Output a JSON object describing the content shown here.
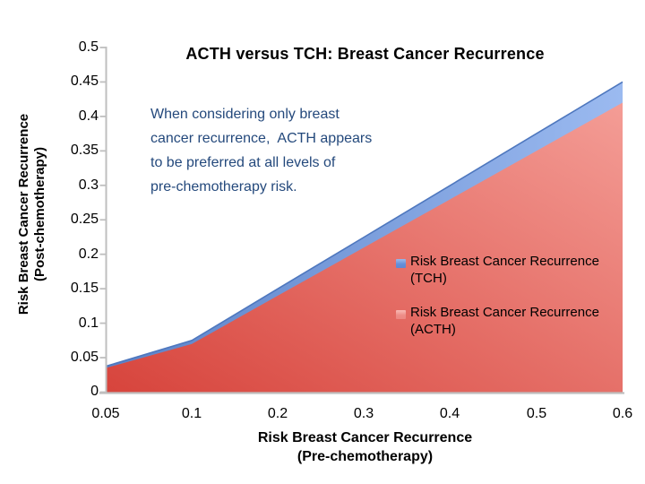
{
  "title": "ACTH versus TCH: Breast Cancer Recurrence",
  "annotation": {
    "lines": [
      "When considering only breast",
      "cancer recurrence,  ACTH appears",
      "to be preferred at all levels of",
      "pre-chemotherapy risk."
    ]
  },
  "y_axis": {
    "title_line1": "Risk Breast Cancer Recurrence",
    "title_line2": "(Post-chemotherapy)",
    "ticks": [
      "0.5",
      "0.45",
      "0.4",
      "0.35",
      "0.3",
      "0.25",
      "0.2",
      "0.15",
      "0.1",
      "0.05",
      "0"
    ]
  },
  "x_axis": {
    "title_line1": "Risk Breast Cancer Recurrence",
    "title_line2": "(Pre-chemotherapy)",
    "ticks": [
      "0.05",
      "0.1",
      "0.2",
      "0.3",
      "0.4",
      "0.5",
      "0.6"
    ]
  },
  "legend": {
    "items": [
      {
        "line1": "Risk Breast Cancer Recurrence",
        "line2": "(TCH)"
      },
      {
        "line1": "Risk Breast Cancer Recurrence",
        "line2": "(ACTH)"
      }
    ]
  },
  "chart_data": {
    "type": "area",
    "title": "ACTH versus TCH: Breast Cancer Recurrence",
    "categories": [
      0.05,
      0.1,
      0.2,
      0.3,
      0.4,
      0.5,
      0.6
    ],
    "x_axis_type": "category",
    "series": [
      {
        "name": "Risk Breast Cancer Recurrence (TCH)",
        "values": [
          0.0375,
          0.075,
          0.15,
          0.225,
          0.3,
          0.375,
          0.45
        ]
      },
      {
        "name": "Risk Breast Cancer Recurrence (ACTH)",
        "values": [
          0.035,
          0.07,
          0.14,
          0.21,
          0.28,
          0.35,
          0.42
        ]
      }
    ],
    "xlabel": "Risk Breast Cancer Recurrence (Pre-chemotherapy)",
    "ylabel": "Risk Breast Cancer Recurrence (Post-chemotherapy)",
    "ylim": [
      0,
      0.5
    ],
    "grid": false,
    "legend_position": "inside-right",
    "annotation": "When considering only breast cancer recurrence,  ACTH appears to be preferred at all levels of pre-chemotherapy risk."
  },
  "colors": {
    "tch_fill_left": "#5B82C8",
    "tch_fill_right": "#9BBAF0",
    "tch_edge": "#4E77BE",
    "acth_fill_dark": "#D7443C",
    "acth_fill_light": "#F49D96",
    "axis_line": "#BFBFBF",
    "annotation_text": "#24497C",
    "title_text": "#000000"
  }
}
